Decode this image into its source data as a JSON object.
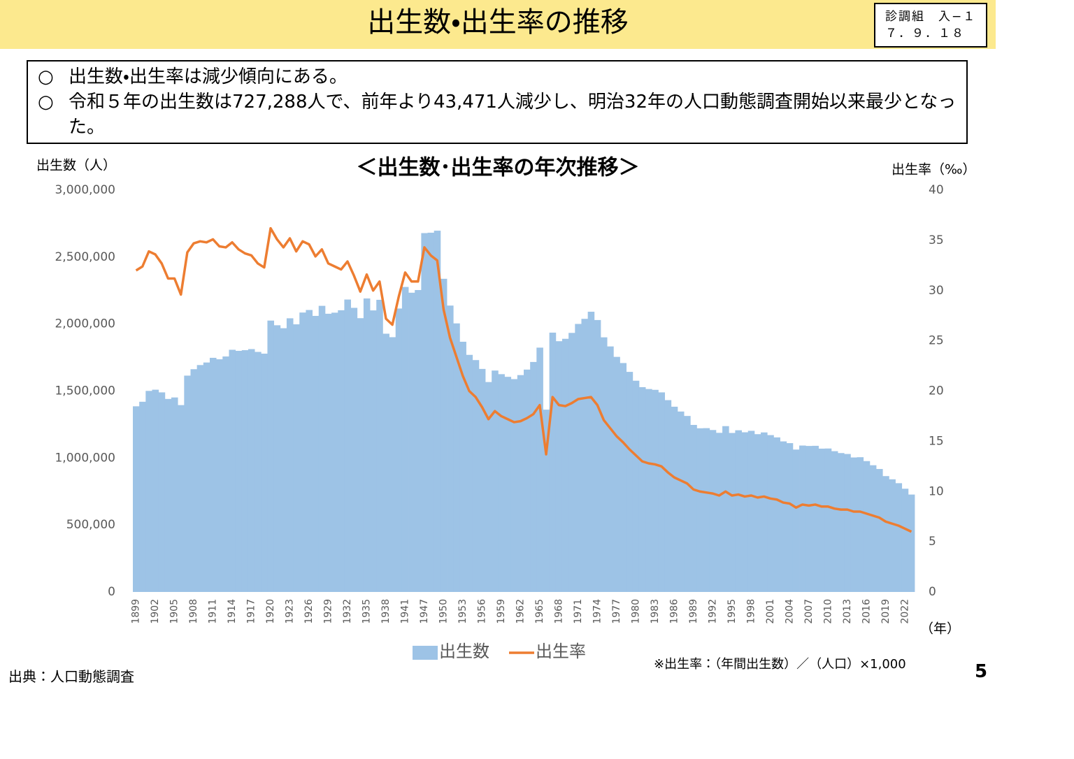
{
  "header": {
    "title": "出生数・出生率の推移",
    "code_lines": [
      "診調組　入−１",
      "７．９．１８"
    ]
  },
  "notes": [
    {
      "marker": "○",
      "text": "出生数・出生率は減少傾向にある。"
    },
    {
      "marker": "○",
      "text": "令和５年の出生数は727,288人で、前年より43,471人減少し、明治32年の人口動態調査開始以来最少となった。"
    }
  ],
  "source": "出典：人口動態調査",
  "page_number": "5",
  "chart_data": {
    "type": "bar",
    "title": "＜出生数･出生率の年次推移＞",
    "y_label": "出生数（人）",
    "y2_label": "出生率（‰）",
    "x_label": "（年）",
    "note": "※出生率：（年間出生数）／（人口）×1,000",
    "categories": [
      "1899",
      null,
      null,
      "1902",
      null,
      null,
      "1905",
      null,
      null,
      "1908",
      null,
      null,
      "1911",
      null,
      null,
      "1914",
      null,
      null,
      "1917",
      null,
      null,
      "1920",
      null,
      null,
      "1923",
      null,
      null,
      "1926",
      null,
      null,
      "1929",
      null,
      null,
      "1932",
      null,
      null,
      "1935",
      null,
      null,
      "1938",
      null,
      null,
      "1941",
      null,
      null,
      "1947",
      null,
      null,
      "1950",
      null,
      null,
      "1953",
      null,
      null,
      "1956",
      null,
      null,
      "1959",
      null,
      null,
      "1962",
      null,
      null,
      "1965",
      null,
      null,
      "1968",
      null,
      null,
      "1971",
      null,
      null,
      "1974",
      null,
      null,
      "1977",
      null,
      null,
      "1980",
      null,
      null,
      "1983",
      null,
      null,
      "1986",
      null,
      null,
      "1989",
      null,
      null,
      "1992",
      null,
      null,
      "1995",
      null,
      null,
      "1998",
      null,
      null,
      "2001",
      null,
      null,
      "2004",
      null,
      null,
      "2007",
      null,
      null,
      "2010",
      null,
      null,
      "2013",
      null,
      null,
      "2016",
      null,
      null,
      "2019",
      null,
      null,
      "2022",
      null
    ],
    "series": [
      {
        "name": "出生数",
        "type": "bar",
        "color": "#9dc3e6",
        "values": [
          1386000,
          1420000,
          1501000,
          1510000,
          1490000,
          1441000,
          1452000,
          1395000,
          1615000,
          1663000,
          1694000,
          1713000,
          1748000,
          1737000,
          1758000,
          1808000,
          1800000,
          1805000,
          1813000,
          1792000,
          1779000,
          2026000,
          1991000,
          1969000,
          2043000,
          1998000,
          2086000,
          2105000,
          2061000,
          2136000,
          2077000,
          2085000,
          2103000,
          2183000,
          2121000,
          2044000,
          2191000,
          2102000,
          2181000,
          1928000,
          1902000,
          2116000,
          2277000,
          2234000,
          2254000,
          2679000,
          2682000,
          2697000,
          2338000,
          2138000,
          2005000,
          1868000,
          1770000,
          1731000,
          1665000,
          1567000,
          1653000,
          1626000,
          1606000,
          1589000,
          1619000,
          1660000,
          1717000,
          1824000,
          1361000,
          1936000,
          1872000,
          1890000,
          1934000,
          2001000,
          2039000,
          2092000,
          2030000,
          1901000,
          1833000,
          1755000,
          1709000,
          1643000,
          1577000,
          1529000,
          1515000,
          1509000,
          1490000,
          1432000,
          1383000,
          1347000,
          1314000,
          1247000,
          1222000,
          1223000,
          1209000,
          1188000,
          1238000,
          1187000,
          1207000,
          1192000,
          1203000,
          1178000,
          1191000,
          1171000,
          1154000,
          1124000,
          1111000,
          1063000,
          1093000,
          1090000,
          1091000,
          1070000,
          1071000,
          1051000,
          1037000,
          1030000,
          1004000,
          1006000,
          977000,
          946000,
          918000,
          865000,
          841000,
          812000,
          770759,
          727288
        ]
      },
      {
        "name": "出生率",
        "type": "line",
        "axis": "y2",
        "color": "#ed7d31",
        "values": [
          32.0,
          32.4,
          33.9,
          33.6,
          32.7,
          31.2,
          31.2,
          29.6,
          33.8,
          34.7,
          34.9,
          34.8,
          35.1,
          34.4,
          34.3,
          34.8,
          34.1,
          33.7,
          33.5,
          32.7,
          32.3,
          36.2,
          35.1,
          34.3,
          35.2,
          33.9,
          34.9,
          34.6,
          33.4,
          34.1,
          32.7,
          32.4,
          32.1,
          32.9,
          31.5,
          29.9,
          31.6,
          30.0,
          30.9,
          27.2,
          26.6,
          29.4,
          31.8,
          30.9,
          30.9,
          34.3,
          33.5,
          33.0,
          28.1,
          25.3,
          23.4,
          21.5,
          20.0,
          19.4,
          18.4,
          17.2,
          18.0,
          17.5,
          17.2,
          16.9,
          17.0,
          17.3,
          17.7,
          18.6,
          13.7,
          19.4,
          18.6,
          18.5,
          18.8,
          19.2,
          19.3,
          19.4,
          18.6,
          17.1,
          16.3,
          15.5,
          14.9,
          14.2,
          13.6,
          13.0,
          12.8,
          12.7,
          12.5,
          11.9,
          11.4,
          11.1,
          10.8,
          10.2,
          10.0,
          9.9,
          9.8,
          9.6,
          10.0,
          9.6,
          9.7,
          9.5,
          9.6,
          9.4,
          9.5,
          9.3,
          9.2,
          8.9,
          8.8,
          8.4,
          8.7,
          8.6,
          8.7,
          8.5,
          8.5,
          8.3,
          8.2,
          8.2,
          8.0,
          8.0,
          7.8,
          7.6,
          7.4,
          7.0,
          6.8,
          6.6,
          6.3,
          6.0
        ]
      }
    ],
    "ylim": [
      0,
      3000000
    ],
    "yticks": [
      0,
      {
        "value": 500000,
        "label": "500,000"
      },
      {
        "value": 1000000,
        "label": "1,000,000"
      },
      {
        "value": 1500000,
        "label": "1,500,000"
      },
      {
        "value": 2000000,
        "label": "2,000,000"
      },
      {
        "value": 2500000,
        "label": "2,500,000"
      },
      {
        "value": 3000000,
        "label": "3,000,000"
      }
    ],
    "y2lim": [
      0,
      40
    ],
    "y2ticks": [
      0,
      5,
      10,
      15,
      20,
      25,
      30,
      35,
      40
    ],
    "grid": false,
    "legend": "bottom"
  }
}
